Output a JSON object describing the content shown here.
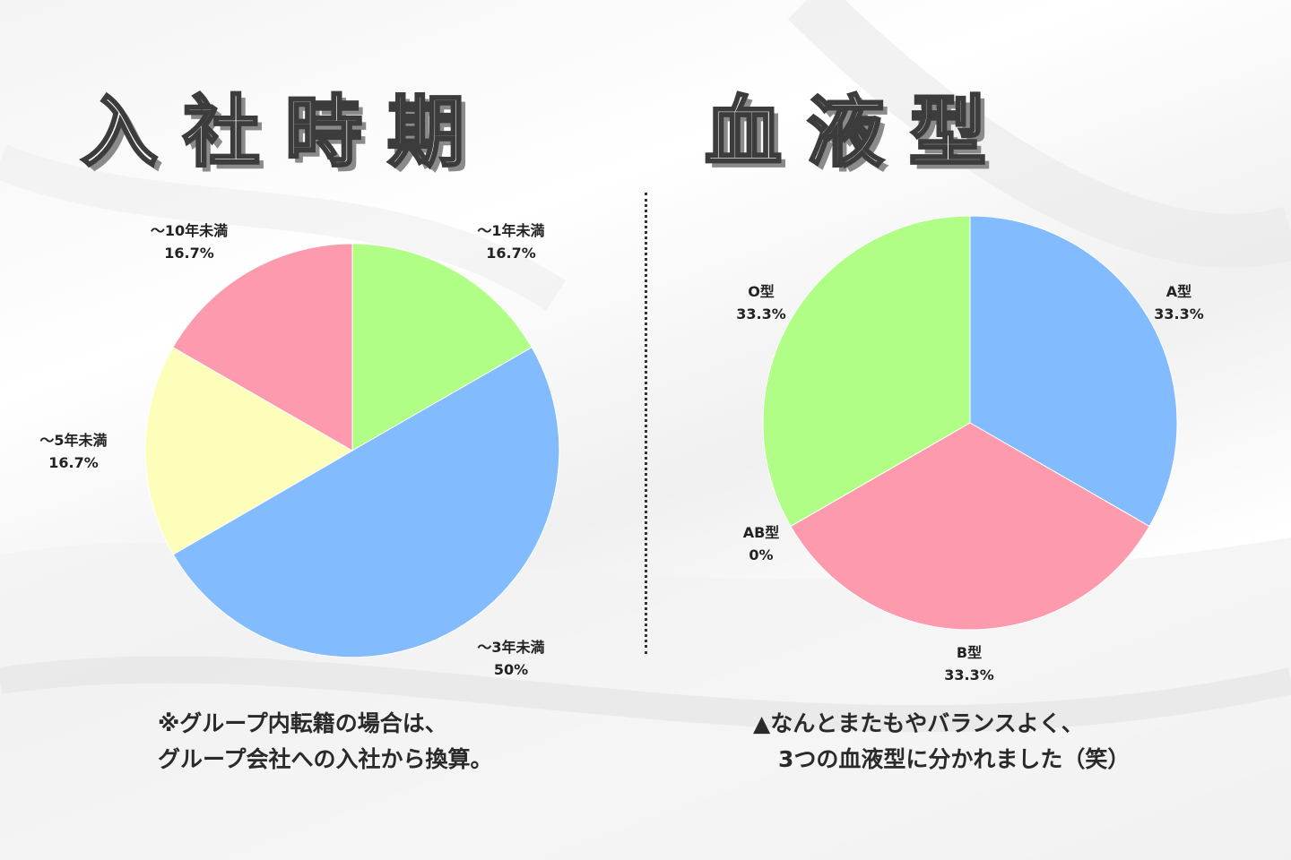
{
  "headings": {
    "left": "入社時期",
    "right": "血液型"
  },
  "chart_data": [
    {
      "type": "pie",
      "title": "入社時期",
      "categories": [
        "～1年未満",
        "～3年未満",
        "～5年未満",
        "～10年未満"
      ],
      "values": [
        16.7,
        50,
        16.7,
        16.7
      ],
      "value_labels": [
        "16.7%",
        "50%",
        "16.7%",
        "16.7%"
      ],
      "colors": [
        "#b1fe86",
        "#82bcfe",
        "#fefebb",
        "#fe9aae"
      ]
    },
    {
      "type": "pie",
      "title": "血液型",
      "categories": [
        "A型",
        "B型",
        "AB型",
        "O型"
      ],
      "values": [
        33.3,
        33.3,
        0,
        33.3
      ],
      "value_labels": [
        "33.3%",
        "33.3%",
        "0%",
        "33.3%"
      ],
      "colors": [
        "#82bcfe",
        "#fe9aae",
        "#fefebb",
        "#b1fe86"
      ]
    }
  ],
  "notes": {
    "left": [
      "※グループ内転籍の場合は、",
      "グループ会社への入社から換算。"
    ],
    "right": [
      "▲なんとまたもやバランスよく、",
      "3つの血液型に分かれました（笑）"
    ]
  }
}
